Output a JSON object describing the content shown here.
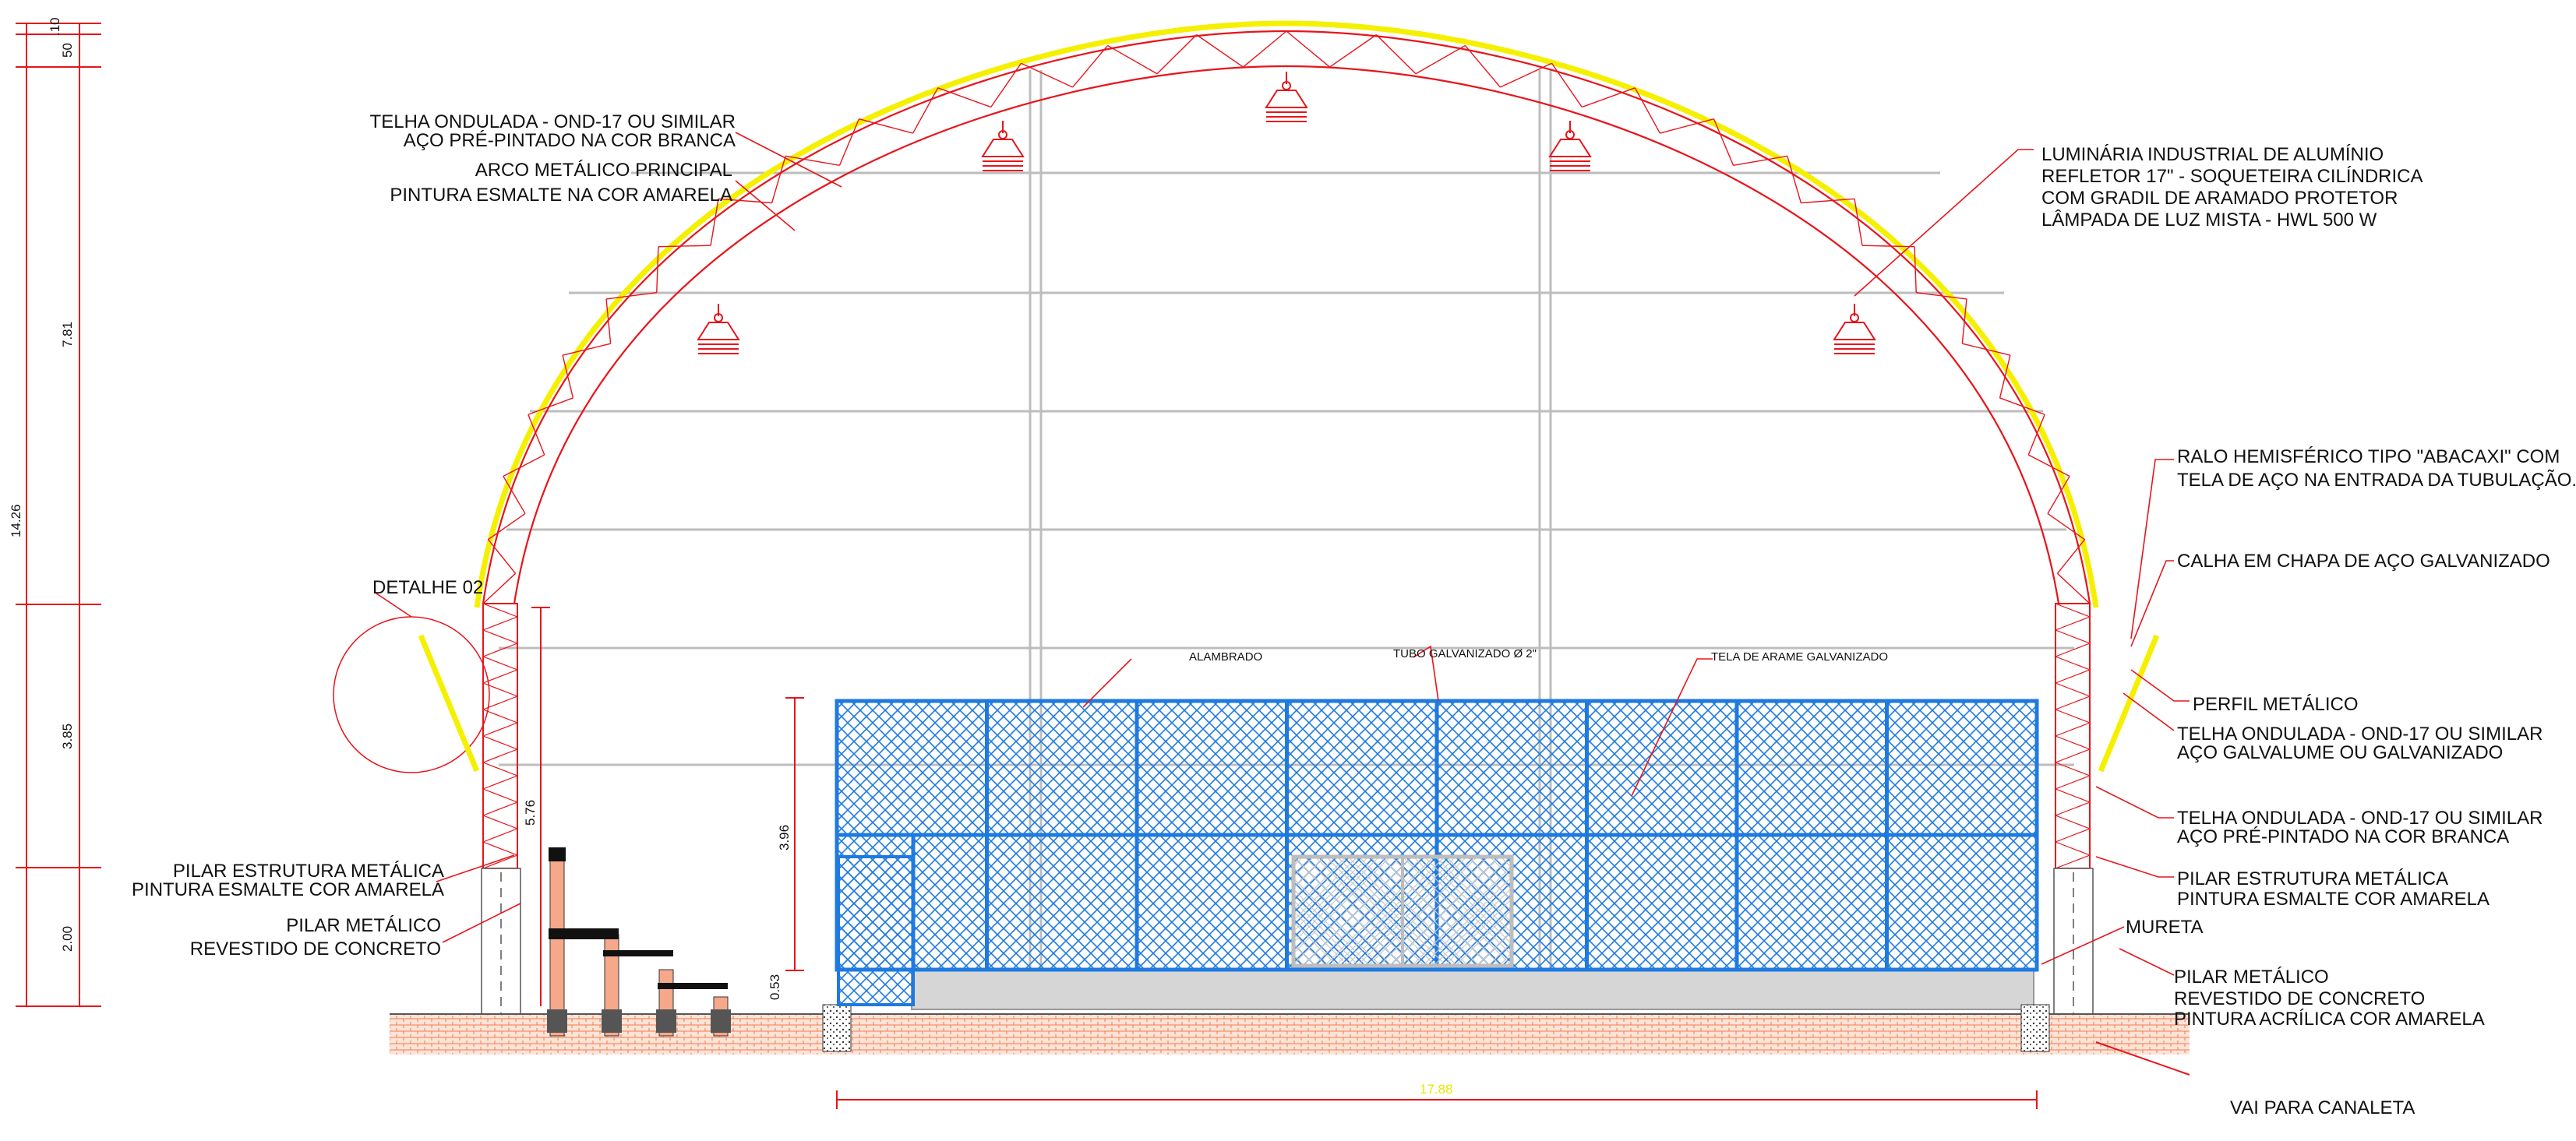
{
  "colors": {
    "structure": "#e8141b",
    "fence": "#1f7ae0",
    "roof": "#f4f000",
    "ground": "#f07c4c",
    "gridline": "#bdbdbd",
    "leader": "#e8141b",
    "text": "#111111"
  },
  "dimensions": {
    "d_10": ".10",
    "d_50": "50",
    "d_781": "7.81",
    "d_1426": "14.26",
    "d_385": "3.85",
    "d_200": "2.00",
    "d_576": "5.76",
    "d_396": "3.96",
    "d_053": "0.53",
    "d_1788": "17.88"
  },
  "labels": {
    "roof_tile_1": "TELHA ONDULADA - OND-17 OU SIMILAR",
    "roof_tile_2": "AÇO PRÉ-PINTADO NA COR BRANCA",
    "arch_1": "ARCO METÁLICO PRINCIPAL",
    "arch_2": "PINTURA ESMALTE NA COR AMARELA",
    "lamp_1": "LUMINÁRIA INDUSTRIAL DE ALUMÍNIO",
    "lamp_2": "REFLETOR 17\" - SOQUETEIRA CILÍNDRICA",
    "lamp_3": "COM GRADIL DE ARAMADO PROTETOR",
    "lamp_4": "LÂMPADA DE LUZ MISTA - HWL 500 W",
    "drain_1": "RALO HEMISFÉRICO TIPO \"ABACAXI\" COM",
    "drain_2": "TELA DE AÇO NA ENTRADA DA TUBULAÇÃO.",
    "gutter": "CALHA EM CHAPA DE AÇO GALVANIZADO",
    "detail": "DETALHE 02",
    "profile": "PERFIL METÁLICO",
    "tile_galv_1": "TELHA ONDULADA - OND-17 OU SIMILAR",
    "tile_galv_2": "AÇO GALVALUME OU GALVANIZADO",
    "tile_white_1": "TELHA ONDULADA - OND-17 OU SIMILAR",
    "tile_white_2": "AÇO PRÉ-PINTADO NA COR BRANCA",
    "pillar_left_1": "PILAR ESTRUTURA  METÁLICA",
    "pillar_left_2": "PINTURA ESMALTE COR AMARELA",
    "pillar_conc_left_1": "PILAR METÁLICO",
    "pillar_conc_left_2": "REVESTIDO DE CONCRETO",
    "pillar_right_1": "PILAR ESTRUTURA  METÁLICA",
    "pillar_right_2": "PINTURA ESMALTE COR AMARELA",
    "mureta": "MURETA",
    "pillar_conc_right_1": "PILAR METÁLICO",
    "pillar_conc_right_2": "REVESTIDO DE CONCRETO",
    "pillar_conc_right_3": "PINTURA ACRÍLICA COR AMARELA",
    "canaleta": "VAI PARA CANALETA",
    "alambrado": "ALAMBRADO",
    "tubo": "TUBO GALVANIZADO Ø 2\"",
    "tela": "TELA DE ARAME GALVANIZADO"
  }
}
